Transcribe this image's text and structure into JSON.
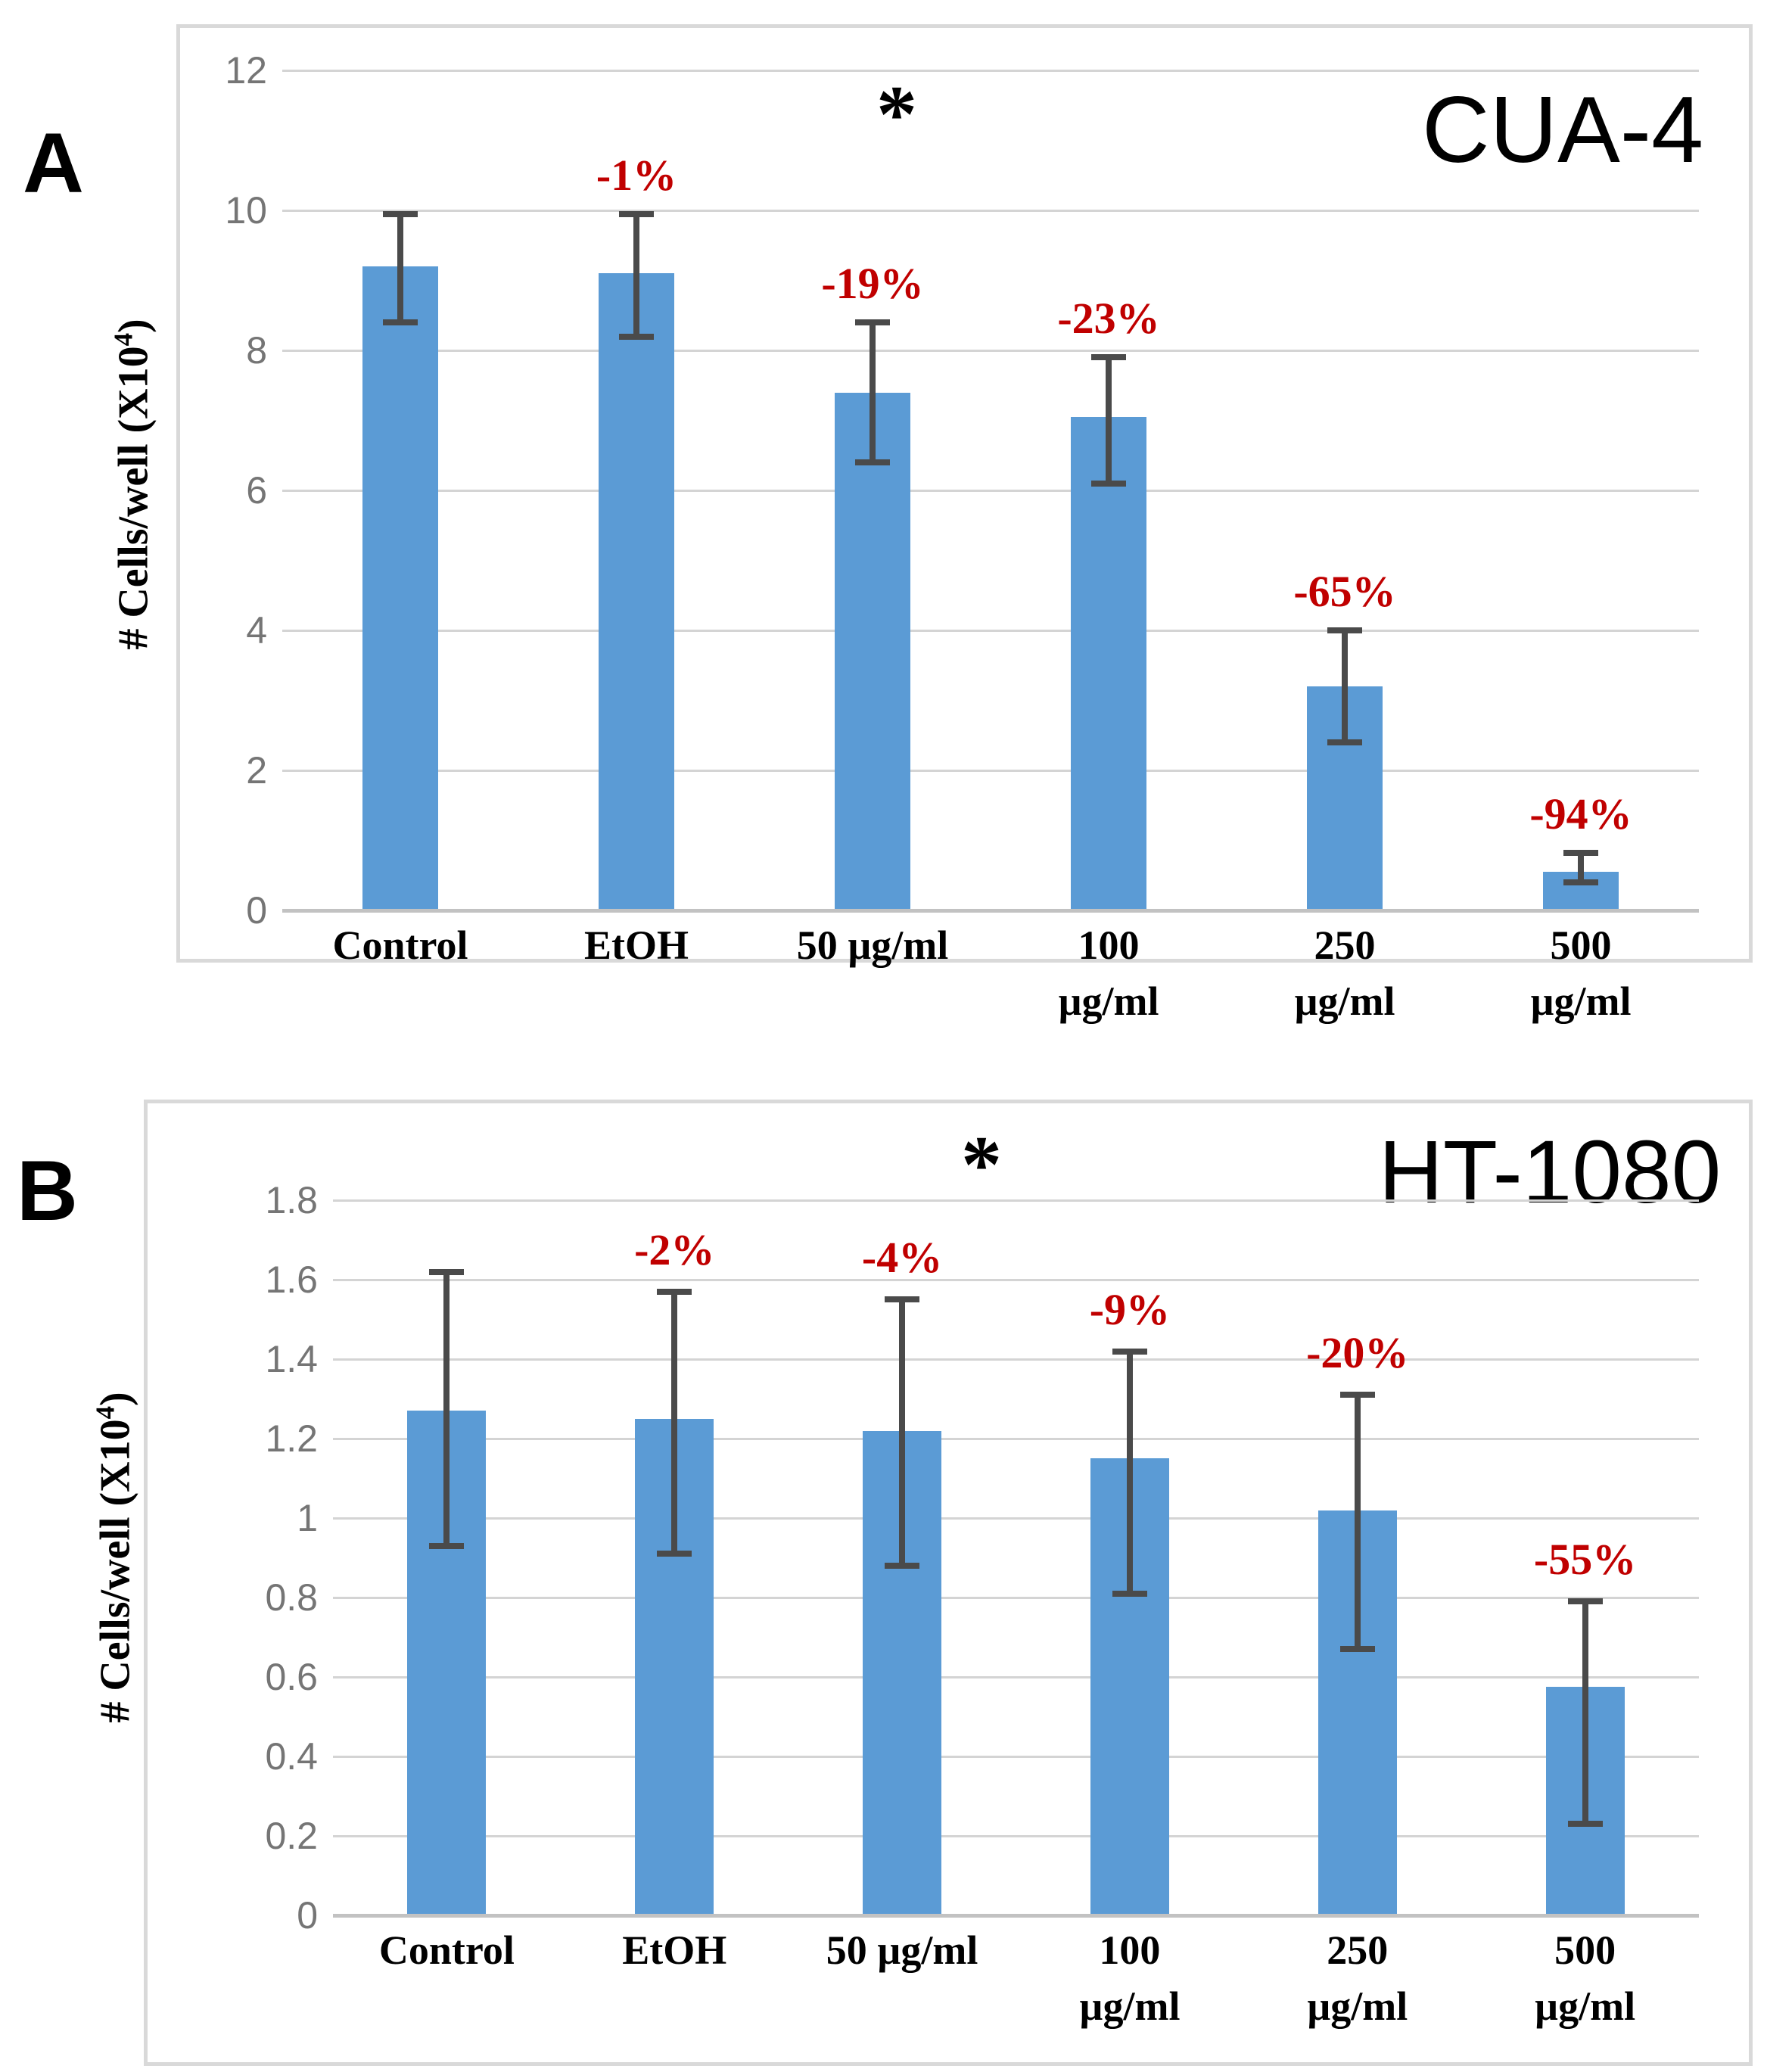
{
  "figure": {
    "background": "#FFFFFF",
    "colors": {
      "bar_fill": "#5B9BD5",
      "error_bar": "#4A4A4A",
      "gridline": "#D4D4D4",
      "axis_line": "#C2C2C2",
      "tick_label": "#757575",
      "pct_label": "#C00000",
      "panel_border": "#D9D9D9",
      "text": "#000000"
    }
  },
  "chart_data": [
    {
      "type": "bar",
      "panel_letter": "A",
      "title": "CUA-4",
      "significance_marker": "*",
      "ylabel": "# Cells/well (X10⁴)",
      "ylabel_prefix": "# Cells/well (X10",
      "ylabel_sup": "4",
      "ylabel_suffix": ")",
      "xlabel": "",
      "ylim": [
        0,
        12
      ],
      "grid": true,
      "legend": null,
      "y_ticks": [
        {
          "value": 0,
          "label": "0"
        },
        {
          "value": 2,
          "label": "2"
        },
        {
          "value": 4,
          "label": "4"
        },
        {
          "value": 6,
          "label": "6"
        },
        {
          "value": 8,
          "label": "8"
        },
        {
          "value": 10,
          "label": "10"
        },
        {
          "value": 12,
          "label": "12"
        }
      ],
      "categories": [
        {
          "label_lines": [
            "Control"
          ],
          "value": 9.2,
          "err_low": 8.4,
          "err_high": 9.95,
          "pct_change": null
        },
        {
          "label_lines": [
            "EtOH"
          ],
          "value": 9.1,
          "err_low": 8.2,
          "err_high": 9.95,
          "pct_change": "-1%"
        },
        {
          "label_lines": [
            "50 µg/ml"
          ],
          "value": 7.4,
          "err_low": 6.4,
          "err_high": 8.4,
          "pct_change": "-19%"
        },
        {
          "label_lines": [
            "100",
            "µg/ml"
          ],
          "value": 7.05,
          "err_low": 6.1,
          "err_high": 7.9,
          "pct_change": "-23%"
        },
        {
          "label_lines": [
            "250",
            "µg/ml"
          ],
          "value": 3.2,
          "err_low": 2.4,
          "err_high": 4.0,
          "pct_change": "-65%"
        },
        {
          "label_lines": [
            "500",
            "µg/ml"
          ],
          "value": 0.55,
          "err_low": 0.4,
          "err_high": 0.82,
          "pct_change": "-94%"
        }
      ]
    },
    {
      "type": "bar",
      "panel_letter": "B",
      "title": "HT-1080",
      "significance_marker": "*",
      "ylabel": "# Cells/well (X10⁴)",
      "ylabel_prefix": "# Cells/well (X10",
      "ylabel_sup": "4",
      "ylabel_suffix": ")",
      "xlabel": "",
      "ylim": [
        0,
        1.8
      ],
      "grid": true,
      "legend": null,
      "y_ticks": [
        {
          "value": 0,
          "label": "0"
        },
        {
          "value": 0.2,
          "label": "0.2"
        },
        {
          "value": 0.4,
          "label": "0.4"
        },
        {
          "value": 0.6,
          "label": "0.6"
        },
        {
          "value": 0.8,
          "label": "0.8"
        },
        {
          "value": 1,
          "label": "1"
        },
        {
          "value": 1.2,
          "label": "1.2"
        },
        {
          "value": 1.4,
          "label": "1.4"
        },
        {
          "value": 1.6,
          "label": "1.6"
        },
        {
          "value": 1.8,
          "label": "1.8"
        }
      ],
      "categories": [
        {
          "label_lines": [
            "Control"
          ],
          "value": 1.27,
          "err_low": 0.93,
          "err_high": 1.62,
          "pct_change": null
        },
        {
          "label_lines": [
            "EtOH"
          ],
          "value": 1.25,
          "err_low": 0.91,
          "err_high": 1.57,
          "pct_change": "-2%"
        },
        {
          "label_lines": [
            "50 µg/ml"
          ],
          "value": 1.22,
          "err_low": 0.88,
          "err_high": 1.55,
          "pct_change": "-4%"
        },
        {
          "label_lines": [
            "100",
            "µg/ml"
          ],
          "value": 1.15,
          "err_low": 0.81,
          "err_high": 1.42,
          "pct_change": "-9%"
        },
        {
          "label_lines": [
            "250",
            "µg/ml"
          ],
          "value": 1.02,
          "err_low": 0.67,
          "err_high": 1.31,
          "pct_change": "-20%"
        },
        {
          "label_lines": [
            "500",
            "µg/ml"
          ],
          "value": 0.575,
          "err_low": 0.23,
          "err_high": 0.79,
          "pct_change": "-55%"
        }
      ]
    }
  ]
}
